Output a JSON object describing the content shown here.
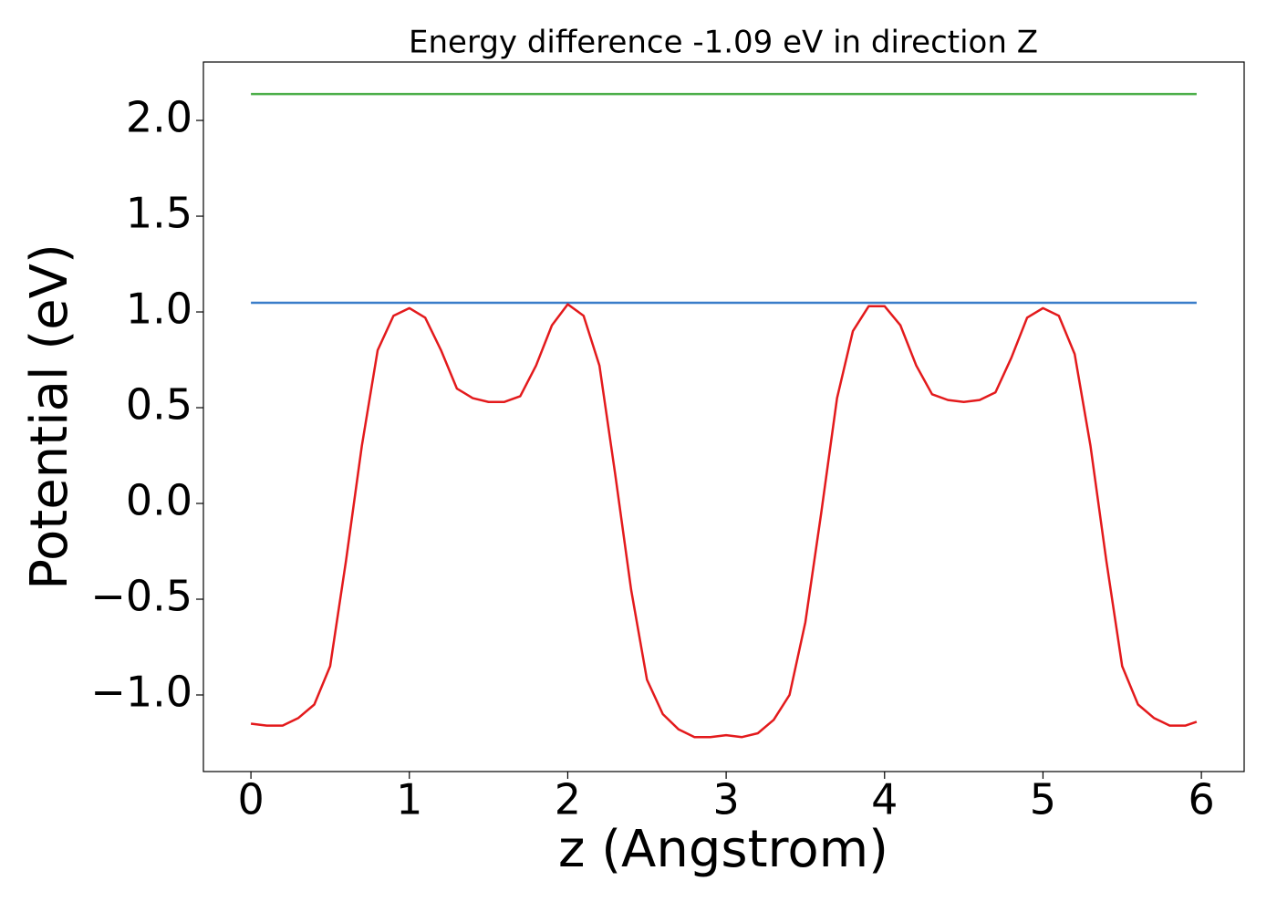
{
  "chart_data": {
    "type": "line",
    "title": "Energy difference -1.09 eV in direction Z",
    "x_label": "z (Angstrom)",
    "y_label": "Potential (eV)",
    "series": [
      {
        "color": "#e31a1c",
        "x": [
          0,
          0.1,
          0.2,
          0.3,
          0.4,
          0.5,
          0.6,
          0.7,
          0.8,
          0.9,
          1.0,
          1.1,
          1.2,
          1.3,
          1.4,
          1.5,
          1.6,
          1.7,
          1.8,
          1.9,
          2.0,
          2.1,
          2.2,
          2.3,
          2.4,
          2.5,
          2.6,
          2.7,
          2.8,
          2.9,
          3.0,
          3.1,
          3.2,
          3.3,
          3.4,
          3.5,
          3.6,
          3.7,
          3.8,
          3.9,
          4.0,
          4.1,
          4.2,
          4.3,
          4.4,
          4.5,
          4.6,
          4.7,
          4.8,
          4.9,
          5.0,
          5.1,
          5.2,
          5.3,
          5.4,
          5.5,
          5.6,
          5.7,
          5.8,
          5.9,
          5.97
        ],
        "values": [
          -1.15,
          -1.16,
          -1.16,
          -1.12,
          -1.05,
          -0.85,
          -0.3,
          0.3,
          0.8,
          0.98,
          1.02,
          0.97,
          0.8,
          0.6,
          0.55,
          0.53,
          0.53,
          0.56,
          0.72,
          0.93,
          1.04,
          0.98,
          0.72,
          0.15,
          -0.45,
          -0.92,
          -1.1,
          -1.18,
          -1.22,
          -1.22,
          -1.21,
          -1.22,
          -1.2,
          -1.13,
          -1.0,
          -0.62,
          -0.05,
          0.55,
          0.9,
          1.03,
          1.03,
          0.93,
          0.72,
          0.57,
          0.54,
          0.53,
          0.54,
          0.58,
          0.76,
          0.97,
          1.02,
          0.98,
          0.78,
          0.3,
          -0.3,
          -0.85,
          -1.05,
          -1.12,
          -1.16,
          -1.16,
          -1.14
        ]
      },
      {
        "color": "#3a7dc9",
        "x": [
          0,
          5.97
        ],
        "values": [
          1.048,
          1.048
        ]
      },
      {
        "color": "#4daf4a",
        "x": [
          0,
          5.97
        ],
        "values": [
          2.138,
          2.138
        ]
      }
    ],
    "xlim": [
      -0.3,
      6.27
    ],
    "ylim": [
      -1.4,
      2.305
    ],
    "xticks": [
      0,
      1,
      2,
      3,
      4,
      5,
      6
    ],
    "yticks": [
      {
        "value": -1.0,
        "label": "−1.0"
      },
      {
        "value": -0.5,
        "label": "−0.5"
      },
      {
        "value": 0.0,
        "label": "0.0"
      },
      {
        "value": 0.5,
        "label": "0.5"
      },
      {
        "value": 1.0,
        "label": "1.0"
      },
      {
        "value": 1.5,
        "label": "1.5"
      },
      {
        "value": 2.0,
        "label": "2.0"
      }
    ]
  }
}
